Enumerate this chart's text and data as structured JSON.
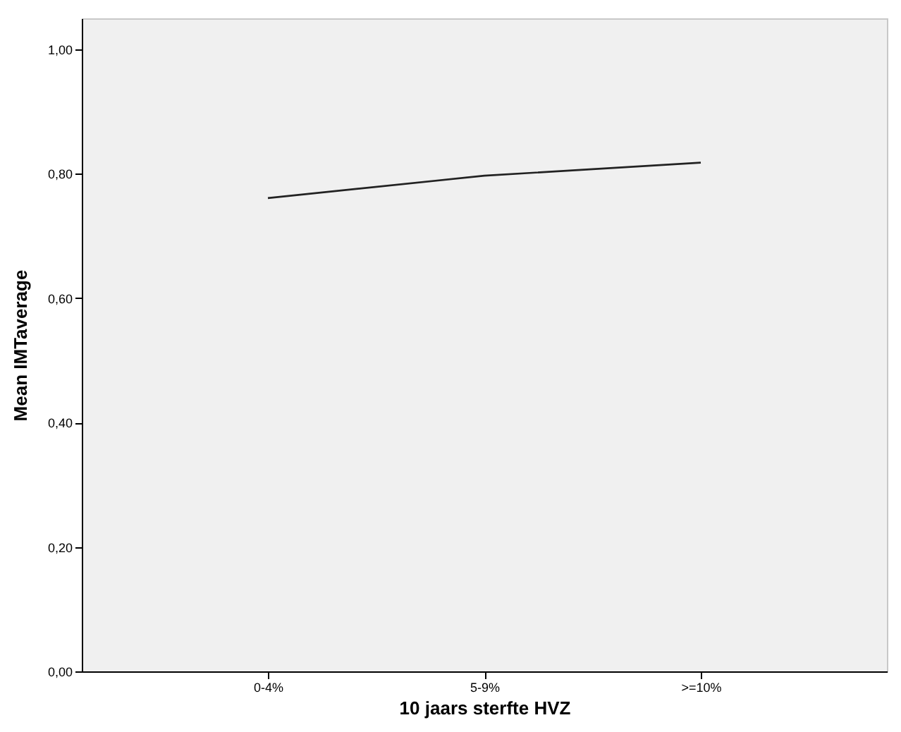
{
  "chart_data": {
    "type": "line",
    "xlabel": "10 jaars sterfte HVZ",
    "ylabel": "Mean IMTaverage",
    "categories": [
      "0-4%",
      "5-9%",
      ">=10%"
    ],
    "series": [
      {
        "color": "#222222",
        "values": [
          0.761,
          0.797,
          0.818
        ]
      }
    ],
    "ylim": [
      0,
      1.05
    ],
    "yticks": [
      {
        "value": 0,
        "label": "0,00"
      },
      {
        "value": 0.2,
        "label": "0,20"
      },
      {
        "value": 0.4,
        "label": "0,40"
      },
      {
        "value": 0.6,
        "label": "0,60"
      },
      {
        "value": 0.8,
        "label": "0,80"
      },
      {
        "value": 1,
        "label": "1,00"
      }
    ],
    "grid": false,
    "marker": "none",
    "line_style": "solid"
  }
}
